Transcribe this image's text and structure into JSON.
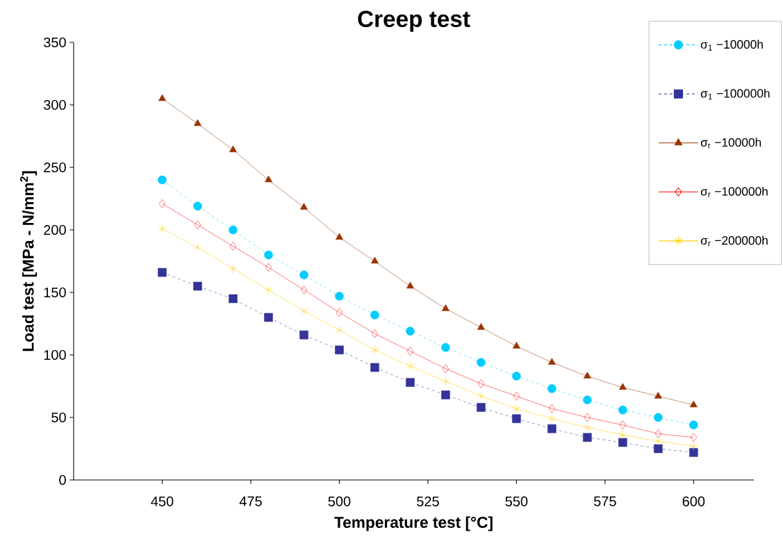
{
  "chart_data": {
    "type": "line",
    "title": "Creep test",
    "xlabel": "Temperature test  [°C]",
    "ylabel": "Load test [MPa - N/mm$^{2}$]",
    "x": [
      450,
      460,
      470,
      480,
      490,
      500,
      510,
      520,
      530,
      540,
      550,
      560,
      570,
      580,
      590,
      600
    ],
    "xlim": [
      425,
      617
    ],
    "xticks": [
      450,
      475,
      500,
      525,
      550,
      575,
      600
    ],
    "ylim": [
      0,
      350
    ],
    "yticks": [
      0,
      50,
      100,
      150,
      200,
      250,
      300,
      350
    ],
    "grid": false,
    "legend": "top right",
    "series": [
      {
        "name": "σ$_{1}$ −10000h",
        "color": "#00ccff",
        "marker": "circle",
        "line_style": "dashed",
        "values": [
          240,
          219,
          200,
          180,
          164,
          147,
          132,
          119,
          106,
          94,
          83,
          73,
          64,
          56,
          50,
          44
        ]
      },
      {
        "name": "σ$_{1}$ −100000h",
        "color": "#333399",
        "marker": "square",
        "line_style": "dashed",
        "values": [
          166,
          155,
          145,
          130,
          116,
          104,
          90,
          78,
          68,
          58,
          49,
          41,
          34,
          30,
          25,
          22
        ]
      },
      {
        "name": "σ$_{r}$ −10000h",
        "color": "#993300",
        "marker": "triangle",
        "line_style": "solid",
        "values": [
          305,
          285,
          264,
          240,
          218,
          194,
          175,
          155,
          137,
          122,
          107,
          94,
          83,
          74,
          67,
          60
        ]
      },
      {
        "name": "σ$_{r}$ −100000h",
        "color": "#ff0000",
        "marker": "diamond",
        "line_style": "solid",
        "values": [
          221,
          204,
          187,
          170,
          152,
          134,
          117,
          103,
          89,
          77,
          67,
          57,
          50,
          44,
          37,
          34
        ]
      },
      {
        "name": "σ$_{r}$ −200000h",
        "color": "#ffcc00",
        "marker": "cross",
        "line_style": "solid",
        "values": [
          201,
          186,
          169,
          152,
          135,
          120,
          104,
          91,
          79,
          67,
          57,
          49,
          42,
          36,
          31,
          27
        ]
      }
    ]
  }
}
